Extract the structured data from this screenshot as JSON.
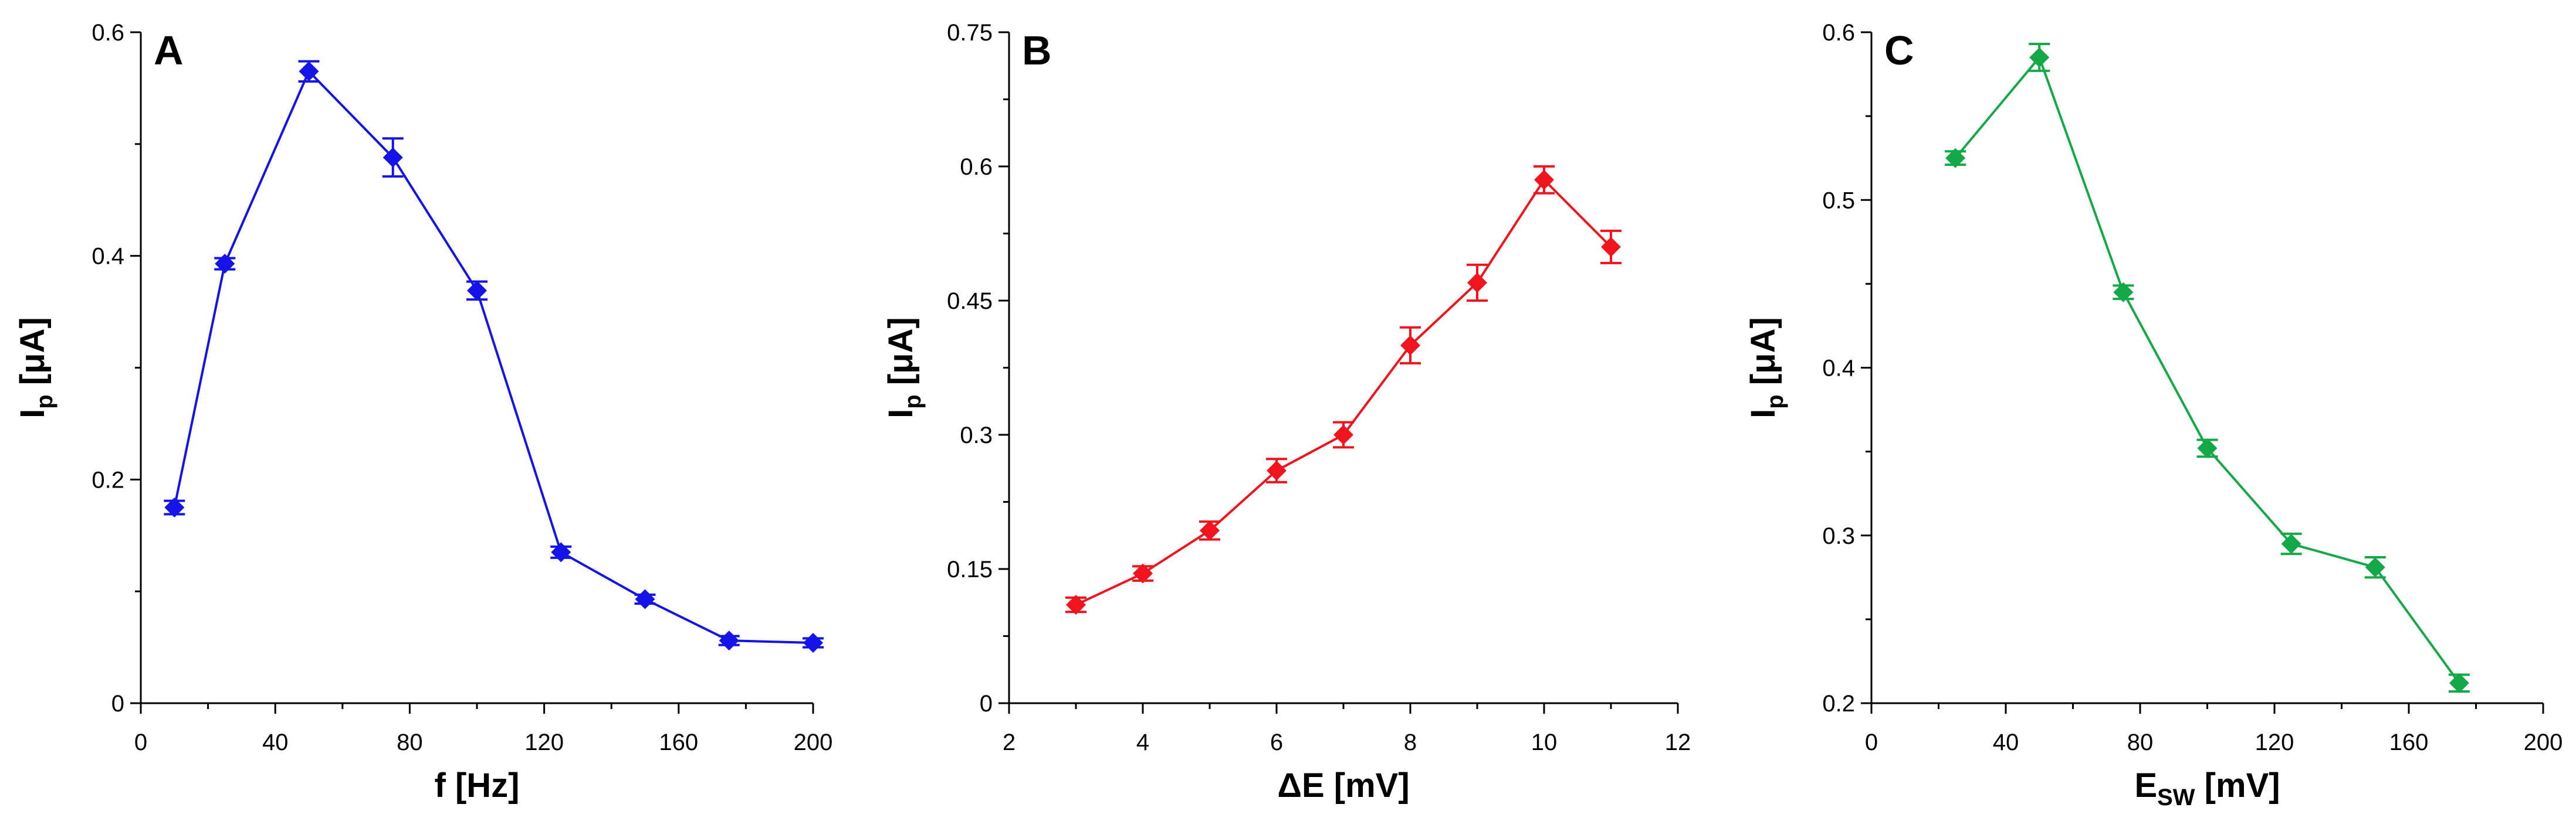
{
  "chart_data": [
    {
      "type": "line",
      "panel": "A",
      "color": "#1414e6",
      "xlabel": "f [Hz]",
      "ylabel": {
        "main": "I",
        "sub": "p",
        "unit": " [μA]"
      },
      "xlim": [
        0,
        200
      ],
      "ylim": [
        0,
        0.6
      ],
      "xticks": [
        0,
        40,
        80,
        120,
        160,
        200
      ],
      "xtick_labels": [
        "0",
        "40",
        "80",
        "120",
        "160",
        "200"
      ],
      "yticks": [
        0,
        0.2,
        0.4,
        0.6
      ],
      "ytick_labels": [
        "0",
        "0.2",
        "0.4",
        "0.6"
      ],
      "x": [
        10,
        25,
        50,
        75,
        100,
        125,
        150,
        175,
        200
      ],
      "y": [
        0.175,
        0.393,
        0.565,
        0.488,
        0.369,
        0.135,
        0.093,
        0.056,
        0.054
      ],
      "err": [
        0.006,
        0.005,
        0.009,
        0.017,
        0.008,
        0.005,
        0.004,
        0.004,
        0.004
      ]
    },
    {
      "type": "line",
      "panel": "B",
      "color": "#f0141e",
      "xlabel": "ΔE [mV]",
      "ylabel": {
        "main": "I",
        "sub": "p",
        "unit": " [μA]"
      },
      "xlim": [
        2,
        12
      ],
      "ylim": [
        0,
        0.75
      ],
      "xticks": [
        2,
        4,
        6,
        8,
        10,
        12
      ],
      "xtick_labels": [
        "2",
        "4",
        "6",
        "8",
        "10",
        "12"
      ],
      "yticks": [
        0,
        0.15,
        0.3,
        0.45,
        0.6,
        0.75
      ],
      "ytick_labels": [
        "0",
        "0.15",
        "0.3",
        "0.45",
        "0.6",
        "0.75"
      ],
      "x": [
        3,
        4,
        5,
        6,
        7,
        8,
        9,
        10,
        11
      ],
      "y": [
        0.11,
        0.145,
        0.193,
        0.26,
        0.3,
        0.4,
        0.47,
        0.585,
        0.51
      ],
      "err": [
        0.008,
        0.008,
        0.01,
        0.013,
        0.014,
        0.02,
        0.02,
        0.015,
        0.018
      ]
    },
    {
      "type": "line",
      "panel": "C",
      "color": "#14a848",
      "xlabel": {
        "main": "E",
        "sub": "SW",
        "unit": " [mV]"
      },
      "ylabel": {
        "main": "I",
        "sub": "p",
        "unit": " [μA]"
      },
      "xlim": [
        0,
        200
      ],
      "ylim": [
        0.2,
        0.6
      ],
      "xticks": [
        0,
        40,
        80,
        120,
        160,
        200
      ],
      "xtick_labels": [
        "0",
        "40",
        "80",
        "120",
        "160",
        "200"
      ],
      "yticks": [
        0.2,
        0.3,
        0.4,
        0.5,
        0.6
      ],
      "ytick_labels": [
        "0.2",
        "0.3",
        "0.4",
        "0.5",
        "0.6"
      ],
      "x": [
        25,
        50,
        75,
        100,
        125,
        150,
        175
      ],
      "y": [
        0.525,
        0.585,
        0.445,
        0.352,
        0.295,
        0.281,
        0.212
      ],
      "err": [
        0.004,
        0.008,
        0.004,
        0.005,
        0.006,
        0.006,
        0.005
      ]
    }
  ]
}
